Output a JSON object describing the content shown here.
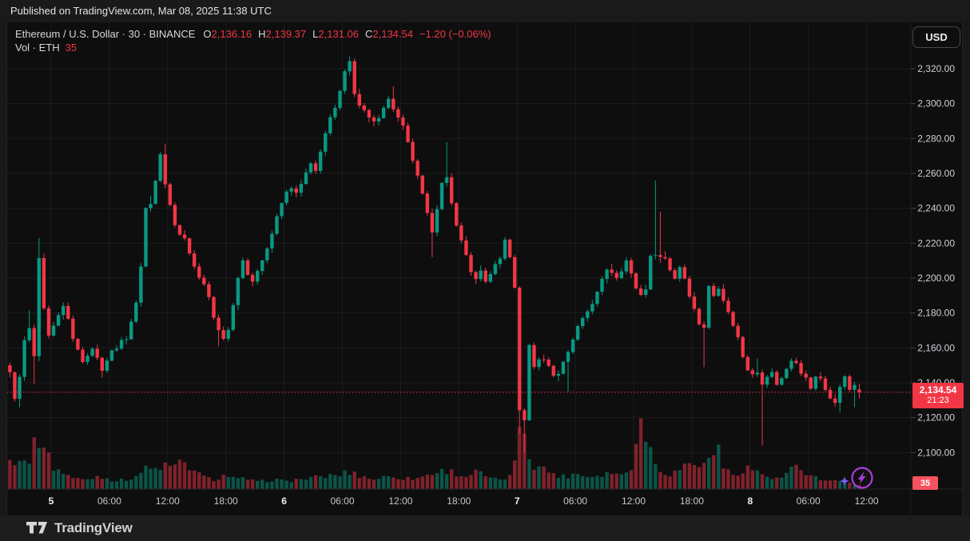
{
  "topbar": {
    "published": "Published on TradingView.com, Mar 08, 2025 11:38 UTC"
  },
  "header": {
    "symbol_line": "Ethereum / U.S. Dollar · 30 · BINANCE",
    "ohlc": [
      {
        "label": "O",
        "value": "2,136.16"
      },
      {
        "label": "H",
        "value": "2,139.37"
      },
      {
        "label": "L",
        "value": "2,131.06"
      },
      {
        "label": "C",
        "value": "2,134.54"
      }
    ],
    "change": "−1.20 (−0.06%)",
    "volume_label": "Vol · ETH",
    "volume_value": "35"
  },
  "axis_button": {
    "label": "USD"
  },
  "price_scale": {
    "last_price": "2,134.54",
    "countdown": "21:23",
    "volume_badge": "35"
  },
  "footer": {
    "brand": "TradingView"
  },
  "colors": {
    "up": "#089981",
    "down": "#f23645",
    "accent_red": "#f23645",
    "vol_badge_bg": "#f7525f",
    "price_badge_bg": "#f23645",
    "flash_purple": "#ad3bdc",
    "sparkle_violet": "#7b5bf0",
    "axis_text": "#ced1d6",
    "axis_text_bold": "#f0f1f2",
    "grid": "rgba(255,255,255,0.06)"
  },
  "chart_data": {
    "type": "candlestick",
    "symbol": "Ethereum / U.S. Dollar",
    "exchange": "BINANCE",
    "interval": "30",
    "currency": "USD",
    "last": {
      "open": 2136.16,
      "high": 2139.37,
      "low": 2131.06,
      "close": 2134.54,
      "change": -1.2,
      "change_pct": -0.06,
      "volume": 35,
      "countdown": "21:23"
    },
    "y_axis": {
      "min": 2093,
      "max": 2331,
      "ticks": [
        2320,
        2300,
        2280,
        2260,
        2240,
        2220,
        2200,
        2180,
        2160,
        2140,
        2120,
        2100
      ]
    },
    "x_axis": {
      "hours_per_candle": 0.5,
      "note": "t = hours from first visible candle; day labels are month days on the axis",
      "ticks": [
        {
          "t": 4.5,
          "label": "5",
          "bold": true
        },
        {
          "t": 10.5,
          "label": "06:00"
        },
        {
          "t": 16.5,
          "label": "12:00"
        },
        {
          "t": 22.5,
          "label": "18:00"
        },
        {
          "t": 28.5,
          "label": "6",
          "bold": true
        },
        {
          "t": 34.5,
          "label": "06:00"
        },
        {
          "t": 40.5,
          "label": "12:00"
        },
        {
          "t": 46.5,
          "label": "18:00"
        },
        {
          "t": 52.5,
          "label": "7",
          "bold": true
        },
        {
          "t": 58.5,
          "label": "06:00"
        },
        {
          "t": 64.5,
          "label": "12:00"
        },
        {
          "t": 70.5,
          "label": "18:00"
        },
        {
          "t": 76.5,
          "label": "8",
          "bold": true
        },
        {
          "t": 82.5,
          "label": "06:00"
        },
        {
          "t": 88.5,
          "label": "12:00"
        }
      ]
    },
    "price_path_anchors": [
      [
        0,
        2150
      ],
      [
        0.5,
        2145
      ],
      [
        1.1,
        2129
      ],
      [
        1.6,
        2146
      ],
      [
        2.1,
        2170
      ],
      [
        2.4,
        2181
      ],
      [
        2.9,
        2138
      ],
      [
        3.4,
        2219
      ],
      [
        3.9,
        2185
      ],
      [
        4.5,
        2168
      ],
      [
        5.5,
        2178
      ],
      [
        6.1,
        2186
      ],
      [
        7,
        2165
      ],
      [
        8,
        2153
      ],
      [
        9,
        2160
      ],
      [
        10,
        2148
      ],
      [
        11,
        2158
      ],
      [
        12.5,
        2166
      ],
      [
        13.5,
        2185
      ],
      [
        14.1,
        2212
      ],
      [
        14.6,
        2247
      ],
      [
        15.1,
        2242
      ],
      [
        15.6,
        2259
      ],
      [
        16.1,
        2274
      ],
      [
        16.6,
        2248
      ],
      [
        17.1,
        2240
      ],
      [
        17.6,
        2228
      ],
      [
        18.6,
        2222
      ],
      [
        19.6,
        2205
      ],
      [
        20.6,
        2196
      ],
      [
        21.6,
        2176
      ],
      [
        22.1,
        2170
      ],
      [
        22.7,
        2163
      ],
      [
        23.3,
        2178
      ],
      [
        23.8,
        2192
      ],
      [
        24.3,
        2212
      ],
      [
        24.8,
        2206
      ],
      [
        25.4,
        2196
      ],
      [
        26.1,
        2205
      ],
      [
        26.7,
        2212
      ],
      [
        27.3,
        2220
      ],
      [
        27.9,
        2235
      ],
      [
        28.5,
        2243
      ],
      [
        29.3,
        2252
      ],
      [
        30,
        2248
      ],
      [
        30.7,
        2258
      ],
      [
        31.4,
        2266
      ],
      [
        32,
        2262
      ],
      [
        32.7,
        2276
      ],
      [
        33.4,
        2290
      ],
      [
        34,
        2298
      ],
      [
        34.6,
        2308
      ],
      [
        35.1,
        2320
      ],
      [
        35.45,
        2325
      ],
      [
        35.9,
        2308
      ],
      [
        36.5,
        2300
      ],
      [
        37.2,
        2294
      ],
      [
        37.8,
        2288
      ],
      [
        38.4,
        2292
      ],
      [
        39,
        2297
      ],
      [
        39.6,
        2304
      ],
      [
        40.2,
        2294
      ],
      [
        40.9,
        2288
      ],
      [
        41.6,
        2276
      ],
      [
        42.3,
        2262
      ],
      [
        42.9,
        2250
      ],
      [
        43.4,
        2242
      ],
      [
        43.9,
        2222
      ],
      [
        44.4,
        2238
      ],
      [
        44.9,
        2250
      ],
      [
        45.3,
        2266
      ],
      [
        45.8,
        2248
      ],
      [
        46.4,
        2232
      ],
      [
        47,
        2222
      ],
      [
        47.6,
        2212
      ],
      [
        48.3,
        2196
      ],
      [
        48.9,
        2206
      ],
      [
        49.5,
        2199
      ],
      [
        50.2,
        2205
      ],
      [
        50.9,
        2210
      ],
      [
        51.5,
        2222
      ],
      [
        52,
        2212
      ],
      [
        52.45,
        2202
      ],
      [
        52.95,
        2126
      ],
      [
        53.45,
        2114
      ],
      [
        53.95,
        2162
      ],
      [
        54.6,
        2148
      ],
      [
        55.3,
        2156
      ],
      [
        56,
        2150
      ],
      [
        56.7,
        2142
      ],
      [
        57.4,
        2150
      ],
      [
        58.1,
        2158
      ],
      [
        58.8,
        2170
      ],
      [
        59.5,
        2176
      ],
      [
        60.2,
        2183
      ],
      [
        60.9,
        2190
      ],
      [
        61.6,
        2200
      ],
      [
        62.2,
        2208
      ],
      [
        62.8,
        2199
      ],
      [
        63.4,
        2204
      ],
      [
        64,
        2210
      ],
      [
        64.5,
        2202
      ],
      [
        65.1,
        2193
      ],
      [
        65.7,
        2189
      ],
      [
        66.2,
        2198
      ],
      [
        66.7,
        2221
      ],
      [
        67.2,
        2210
      ],
      [
        67.8,
        2214
      ],
      [
        68.4,
        2206
      ],
      [
        69,
        2200
      ],
      [
        69.6,
        2208
      ],
      [
        70.2,
        2196
      ],
      [
        70.8,
        2185
      ],
      [
        71.4,
        2176
      ],
      [
        71.9,
        2166
      ],
      [
        72.4,
        2196
      ],
      [
        73,
        2190
      ],
      [
        73.6,
        2196
      ],
      [
        74.2,
        2184
      ],
      [
        74.8,
        2176
      ],
      [
        75.4,
        2168
      ],
      [
        76,
        2155
      ],
      [
        76.5,
        2148
      ],
      [
        76.9,
        2143
      ],
      [
        77.3,
        2154
      ],
      [
        77.8,
        2136
      ],
      [
        78.3,
        2142
      ],
      [
        78.9,
        2147
      ],
      [
        79.5,
        2139
      ],
      [
        80.1,
        2144
      ],
      [
        80.7,
        2150
      ],
      [
        81.3,
        2154
      ],
      [
        81.9,
        2147
      ],
      [
        82.5,
        2142
      ],
      [
        83.1,
        2136
      ],
      [
        83.7,
        2146
      ],
      [
        84.3,
        2139
      ],
      [
        84.9,
        2133
      ],
      [
        85.5,
        2128
      ],
      [
        86,
        2138
      ],
      [
        86.5,
        2143
      ],
      [
        87,
        2136
      ],
      [
        87.5,
        2139
      ],
      [
        88,
        2134.54
      ]
    ],
    "wick_extremes": [
      {
        "t": 1.2,
        "side": "low",
        "price": 2126
      },
      {
        "t": 3.3,
        "side": "high",
        "price": 2223
      },
      {
        "t": 9.8,
        "side": "low",
        "price": 2143
      },
      {
        "t": 16.2,
        "side": "high",
        "price": 2277
      },
      {
        "t": 21.7,
        "side": "low",
        "price": 2161
      },
      {
        "t": 35.4,
        "side": "high",
        "price": 2327
      },
      {
        "t": 39.7,
        "side": "high",
        "price": 2310
      },
      {
        "t": 43.9,
        "side": "low",
        "price": 2212
      },
      {
        "t": 45.4,
        "side": "high",
        "price": 2278
      },
      {
        "t": 52.8,
        "side": "low",
        "price": 2111
      },
      {
        "t": 53.3,
        "side": "low",
        "price": 2100
      },
      {
        "t": 57.9,
        "side": "low",
        "price": 2135
      },
      {
        "t": 66.6,
        "side": "high",
        "price": 2256
      },
      {
        "t": 67.1,
        "side": "high",
        "price": 2238
      },
      {
        "t": 71.9,
        "side": "low",
        "price": 2149
      },
      {
        "t": 77.9,
        "side": "low",
        "price": 2104
      },
      {
        "t": 85.6,
        "side": "low",
        "price": 2123
      },
      {
        "t": 87.2,
        "side": "low",
        "price": 2126
      }
    ],
    "volume_rel_anchors": [
      [
        0,
        30
      ],
      [
        1,
        36
      ],
      [
        2,
        26
      ],
      [
        2.9,
        48
      ],
      [
        3.3,
        62
      ],
      [
        3.9,
        40
      ],
      [
        4.5,
        26
      ],
      [
        5.5,
        20
      ],
      [
        6.5,
        13
      ],
      [
        8,
        10
      ],
      [
        9.5,
        15
      ],
      [
        11,
        9
      ],
      [
        12.5,
        11
      ],
      [
        13.5,
        16
      ],
      [
        14.5,
        24
      ],
      [
        15.5,
        22
      ],
      [
        16.1,
        28
      ],
      [
        17,
        24
      ],
      [
        18,
        30
      ],
      [
        18.6,
        26
      ],
      [
        19.5,
        17
      ],
      [
        20.5,
        12
      ],
      [
        21.5,
        11
      ],
      [
        22.6,
        16
      ],
      [
        23.5,
        10
      ],
      [
        24.5,
        12
      ],
      [
        25.5,
        7
      ],
      [
        26.5,
        9
      ],
      [
        27.5,
        11
      ],
      [
        28.5,
        8
      ],
      [
        30,
        11
      ],
      [
        31.5,
        13
      ],
      [
        33,
        15
      ],
      [
        34.5,
        17
      ],
      [
        35.3,
        20
      ],
      [
        36,
        16
      ],
      [
        37.5,
        11
      ],
      [
        38.5,
        13
      ],
      [
        39.6,
        15
      ],
      [
        41,
        12
      ],
      [
        42.5,
        13
      ],
      [
        43.8,
        18
      ],
      [
        45.2,
        22
      ],
      [
        46.5,
        16
      ],
      [
        47.5,
        14
      ],
      [
        48.3,
        20
      ],
      [
        49.5,
        12
      ],
      [
        50.5,
        10
      ],
      [
        51.8,
        14
      ],
      [
        52.4,
        16
      ],
      [
        52.9,
        82
      ],
      [
        53.4,
        44
      ],
      [
        53.9,
        30
      ],
      [
        55,
        24
      ],
      [
        56.5,
        16
      ],
      [
        57.5,
        14
      ],
      [
        58.5,
        18
      ],
      [
        60,
        14
      ],
      [
        61.5,
        18
      ],
      [
        62.5,
        20
      ],
      [
        63.5,
        12
      ],
      [
        64.7,
        32
      ],
      [
        65.1,
        78
      ],
      [
        65.7,
        58
      ],
      [
        66.6,
        28
      ],
      [
        67.5,
        20
      ],
      [
        68.5,
        16
      ],
      [
        69.5,
        24
      ],
      [
        70.5,
        32
      ],
      [
        71.4,
        22
      ],
      [
        71.9,
        26
      ],
      [
        72.9,
        50
      ],
      [
        73.4,
        28
      ],
      [
        74.5,
        14
      ],
      [
        75.5,
        20
      ],
      [
        76.3,
        26
      ],
      [
        77,
        20
      ],
      [
        77.9,
        16
      ],
      [
        79,
        10
      ],
      [
        80.2,
        14
      ],
      [
        81,
        26
      ],
      [
        82,
        12
      ],
      [
        83,
        16
      ],
      [
        84,
        8
      ],
      [
        85,
        10
      ],
      [
        86,
        7
      ],
      [
        87,
        5
      ],
      [
        88,
        4
      ]
    ]
  }
}
